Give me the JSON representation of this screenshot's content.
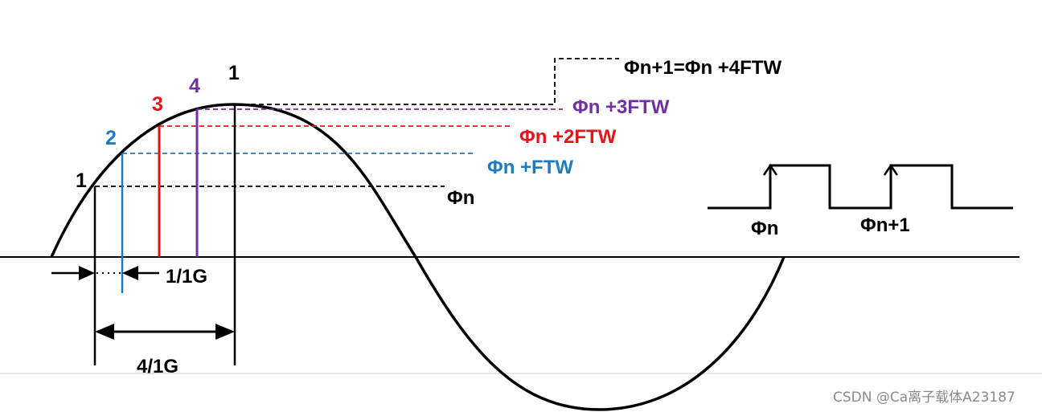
{
  "colors": {
    "black": "#000000",
    "blue": "#1f7bc0",
    "red": "#e8121b",
    "purple": "#7030a0",
    "watermark": "#8a8a8a"
  },
  "samples": [
    {
      "label": "1",
      "color": "black"
    },
    {
      "label": "2",
      "color": "blue"
    },
    {
      "label": "3",
      "color": "red"
    },
    {
      "label": "4",
      "color": "purple"
    },
    {
      "label": "1",
      "color": "black"
    }
  ],
  "phase_labels": {
    "p0": "Φn",
    "p1": "Φn +FTW",
    "p2": "Φn +2FTW",
    "p3": "Φn +3FTW",
    "p4": "Φn+1=Φn +4FTW"
  },
  "pulse_labels": {
    "a": "Φn",
    "b": "Φn+1"
  },
  "intervals": {
    "short": "1/1G",
    "long": "4/1G"
  },
  "watermark": "CSDN @Ca离子载体A23187"
}
